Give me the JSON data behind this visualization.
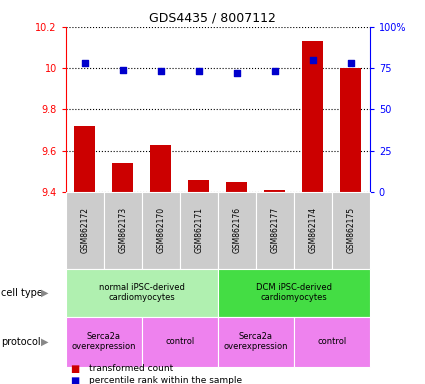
{
  "title": "GDS4435 / 8007112",
  "samples": [
    "GSM862172",
    "GSM862173",
    "GSM862170",
    "GSM862171",
    "GSM862176",
    "GSM862177",
    "GSM862174",
    "GSM862175"
  ],
  "red_values": [
    9.72,
    9.54,
    9.63,
    9.46,
    9.45,
    9.41,
    10.13,
    10.0
  ],
  "blue_values": [
    78,
    74,
    73,
    73,
    72,
    73,
    80,
    78
  ],
  "ylim_left": [
    9.4,
    10.2
  ],
  "ylim_right": [
    0,
    100
  ],
  "yticks_left": [
    9.4,
    9.6,
    9.8,
    10.0,
    10.2
  ],
  "ytick_labels_left": [
    "9.4",
    "9.6",
    "9.8",
    "10",
    "10.2"
  ],
  "yticks_right": [
    0,
    25,
    50,
    75,
    100
  ],
  "ytick_labels_right": [
    "0",
    "25",
    "50",
    "75",
    "100%"
  ],
  "cell_types": [
    {
      "label": "normal iPSC-derived\ncardiomyocytes",
      "start": 0,
      "end": 4,
      "color": "#b0f0b0"
    },
    {
      "label": "DCM iPSC-derived\ncardiomyocytes",
      "start": 4,
      "end": 8,
      "color": "#44dd44"
    }
  ],
  "protocols": [
    {
      "label": "Serca2a\noverexpression",
      "start": 0,
      "end": 2,
      "color": "#ee82ee"
    },
    {
      "label": "control",
      "start": 2,
      "end": 4,
      "color": "#ee82ee"
    },
    {
      "label": "Serca2a\noverexpression",
      "start": 4,
      "end": 6,
      "color": "#ee82ee"
    },
    {
      "label": "control",
      "start": 6,
      "end": 8,
      "color": "#ee82ee"
    }
  ],
  "bar_color": "#cc0000",
  "dot_color": "#0000cc",
  "tick_area_bg": "#cccccc",
  "label_cell_type": "cell type",
  "label_protocol": "protocol",
  "legend_red": "transformed count",
  "legend_blue": "percentile rank within the sample"
}
